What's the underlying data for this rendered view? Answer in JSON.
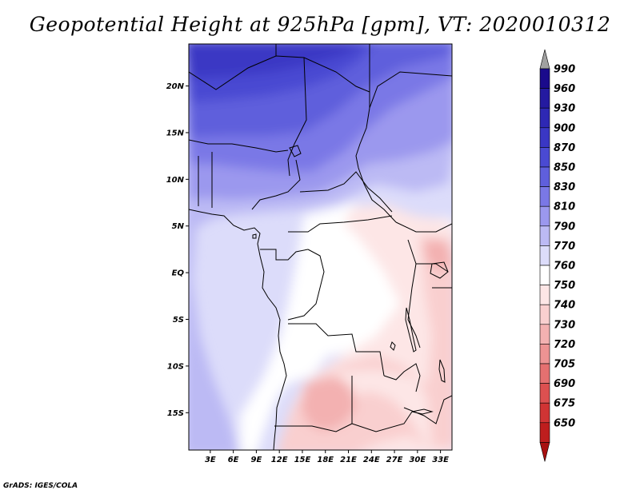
{
  "title": "Geopotential Height at 925hPa [gpm], VT: 2020010312",
  "footer": "GrADS: IGES/COLA",
  "map": {
    "lat_range": [
      -19,
      24.5
    ],
    "lon_range": [
      0.2,
      34.5
    ],
    "lat_ticks": [
      {
        "value": 20,
        "label": "20N"
      },
      {
        "value": 15,
        "label": "15N"
      },
      {
        "value": 10,
        "label": "10N"
      },
      {
        "value": 5,
        "label": "5N"
      },
      {
        "value": 0,
        "label": "EQ"
      },
      {
        "value": -5,
        "label": "5S"
      },
      {
        "value": -10,
        "label": "10S"
      },
      {
        "value": -15,
        "label": "15S"
      }
    ],
    "lon_ticks": [
      {
        "value": 3,
        "label": "3E"
      },
      {
        "value": 6,
        "label": "6E"
      },
      {
        "value": 9,
        "label": "9E"
      },
      {
        "value": 12,
        "label": "12E"
      },
      {
        "value": 15,
        "label": "15E"
      },
      {
        "value": 18,
        "label": "18E"
      },
      {
        "value": 21,
        "label": "21E"
      },
      {
        "value": 24,
        "label": "24E"
      },
      {
        "value": 27,
        "label": "27E"
      },
      {
        "value": 30,
        "label": "30E"
      },
      {
        "value": 33,
        "label": "33E"
      }
    ]
  },
  "colorbar": {
    "levels": [
      {
        "label": "990",
        "color": "#1a0a8c"
      },
      {
        "label": "960",
        "color": "#241aa0"
      },
      {
        "label": "930",
        "color": "#2e28b4"
      },
      {
        "label": "900",
        "color": "#3a37c4"
      },
      {
        "label": "870",
        "color": "#4a4ad2"
      },
      {
        "label": "850",
        "color": "#5f5fdc"
      },
      {
        "label": "830",
        "color": "#7a78e6"
      },
      {
        "label": "810",
        "color": "#9b98ee"
      },
      {
        "label": "790",
        "color": "#bcbaf4"
      },
      {
        "label": "770",
        "color": "#dcdcfa"
      },
      {
        "label": "760",
        "color": "#ffffff"
      },
      {
        "label": "750",
        "color": "#fde6e6"
      },
      {
        "label": "740",
        "color": "#f9cfcf"
      },
      {
        "label": "730",
        "color": "#f3b1b1"
      },
      {
        "label": "720",
        "color": "#ed9393"
      },
      {
        "label": "705",
        "color": "#e57070"
      },
      {
        "label": "690",
        "color": "#dc5050"
      },
      {
        "label": "675",
        "color": "#d03434"
      },
      {
        "label": "650",
        "color": "#be1e1e"
      }
    ],
    "top_arrow_color": "#a0a0a0",
    "bottom_arrow_color": "#a81010"
  }
}
